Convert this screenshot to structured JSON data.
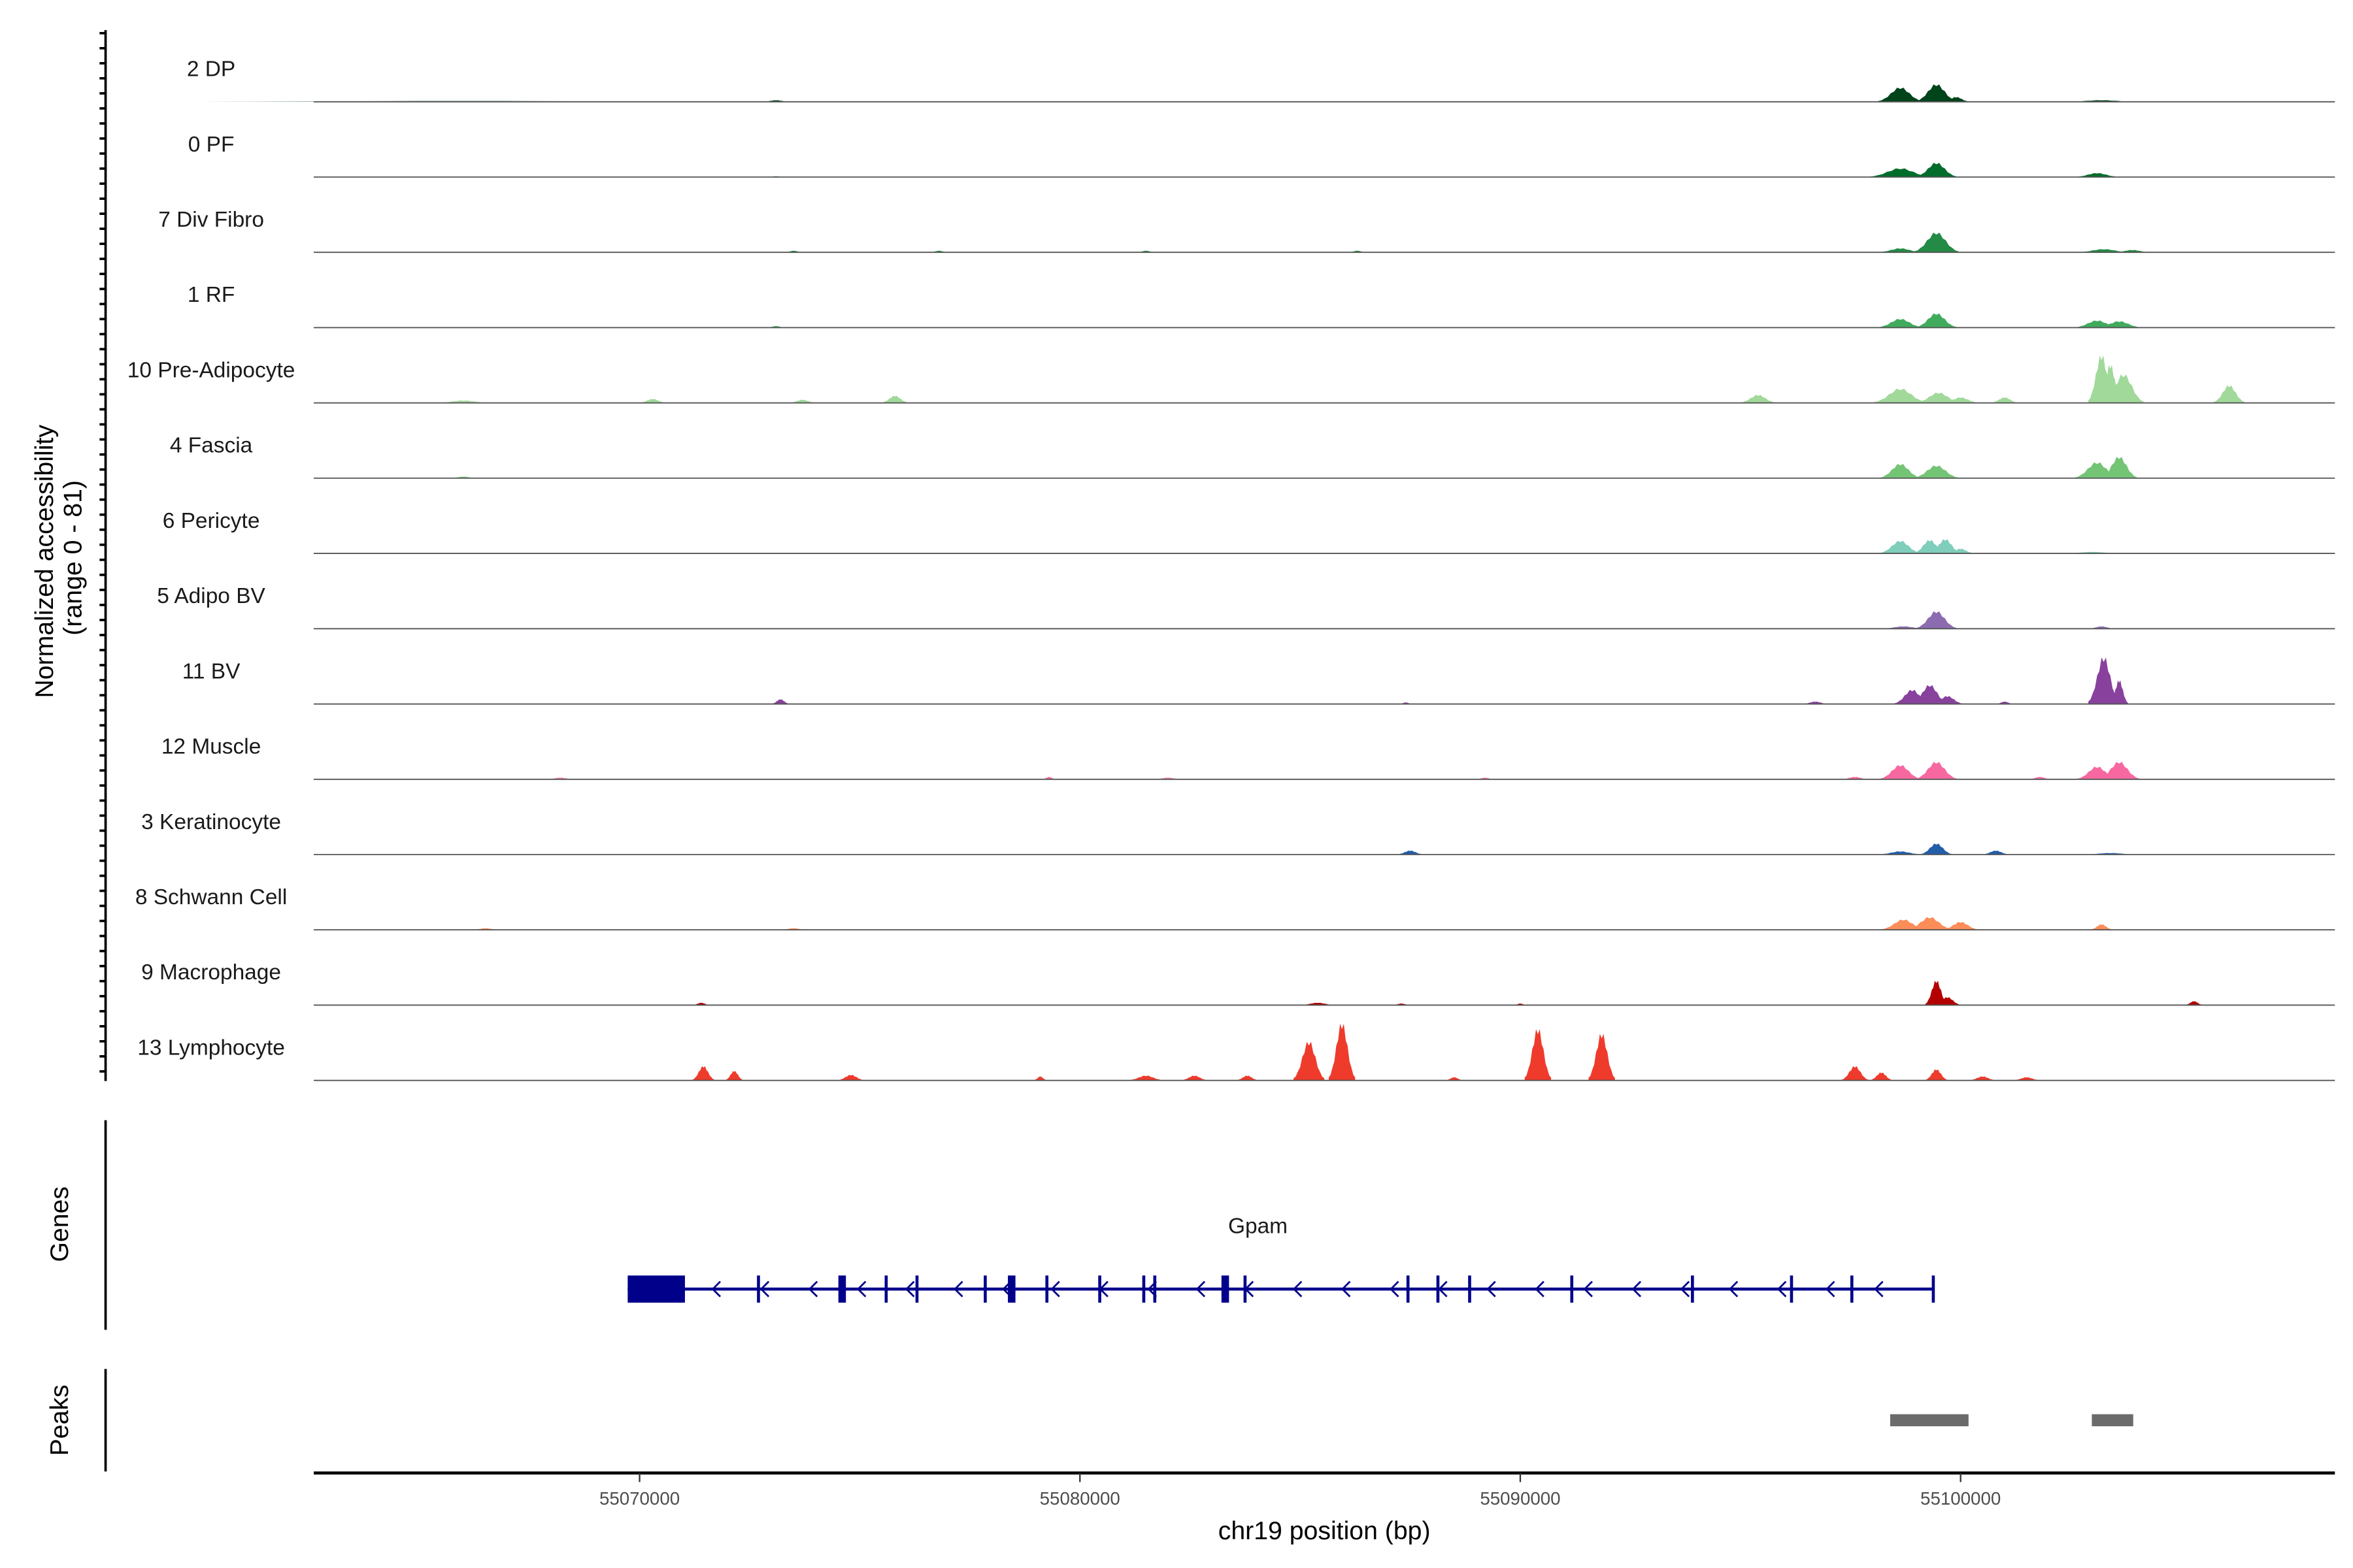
{
  "chart_data": {
    "type": "area",
    "title": "",
    "ylabel": "Normalized accessibility\n(range 0 - 81)",
    "ylabel_lines": [
      "Normalized accessibility",
      "(range 0 - 81)"
    ],
    "ylim": [
      0,
      81
    ],
    "xlabel": "chr19 position (bp)",
    "xlim": [
      55062600,
      55108500
    ],
    "xticks": [
      55070000,
      55080000,
      55090000,
      55100000
    ],
    "tick_labels": [
      "55070000",
      "55080000",
      "55090000",
      "55100000"
    ],
    "genes_label": "Genes",
    "peaks_label": "Peaks",
    "tracks": [
      {
        "name": "2 DP",
        "color": "#00441b",
        "peaks": [
          [
            55098630,
            18,
            500
          ],
          [
            55099450,
            22,
            450
          ],
          [
            55099900,
            6,
            300
          ],
          [
            55073100,
            2,
            300
          ],
          [
            55103200,
            2,
            800
          ],
          [
            55066000,
            1,
            6000
          ]
        ]
      },
      {
        "name": "0 PF",
        "color": "#006d2c",
        "peaks": [
          [
            55098630,
            11,
            700
          ],
          [
            55099450,
            18,
            450
          ],
          [
            55103100,
            5,
            500
          ],
          [
            55073100,
            1,
            200
          ]
        ]
      },
      {
        "name": "7 Div Fibro",
        "color": "#238b45",
        "peaks": [
          [
            55098630,
            5,
            500
          ],
          [
            55099450,
            25,
            500
          ],
          [
            55103250,
            4,
            600
          ],
          [
            55103900,
            3,
            400
          ],
          [
            55073500,
            2,
            200
          ],
          [
            55076800,
            2,
            200
          ],
          [
            55081500,
            2,
            200
          ],
          [
            55086300,
            2,
            200
          ]
        ]
      },
      {
        "name": "1 RF",
        "color": "#41ab5d",
        "peaks": [
          [
            55098630,
            11,
            500
          ],
          [
            55099450,
            18,
            450
          ],
          [
            55103100,
            9,
            500
          ],
          [
            55103600,
            8,
            500
          ],
          [
            55073100,
            2,
            200
          ]
        ]
      },
      {
        "name": "10 Pre-Adipocyte",
        "color": "#a1d99b",
        "peaks": [
          [
            55098630,
            18,
            600
          ],
          [
            55099500,
            13,
            500
          ],
          [
            55100000,
            7,
            400
          ],
          [
            55101000,
            7,
            300
          ],
          [
            55103200,
            60,
            300
          ],
          [
            55103400,
            48,
            250
          ],
          [
            55103700,
            36,
            450
          ],
          [
            55106100,
            22,
            350
          ],
          [
            55095400,
            10,
            400
          ],
          [
            55075800,
            9,
            300
          ],
          [
            55070300,
            5,
            300
          ],
          [
            55066000,
            3,
            600
          ],
          [
            55073700,
            4,
            300
          ]
        ]
      },
      {
        "name": "4 Fascia",
        "color": "#74c476",
        "peaks": [
          [
            55098630,
            18,
            450
          ],
          [
            55099450,
            16,
            500
          ],
          [
            55103100,
            20,
            500
          ],
          [
            55103600,
            27,
            400
          ],
          [
            55066000,
            2,
            300
          ]
        ]
      },
      {
        "name": "6 Pericyte",
        "color": "#7fcdbb",
        "peaks": [
          [
            55098630,
            16,
            450
          ],
          [
            55099300,
            17,
            350
          ],
          [
            55099650,
            18,
            350
          ],
          [
            55100000,
            6,
            300
          ],
          [
            55103000,
            2,
            600
          ]
        ]
      },
      {
        "name": "5 Adipo BV",
        "color": "#8c6bb1",
        "peaks": [
          [
            55099450,
            22,
            450
          ],
          [
            55098700,
            3,
            500
          ],
          [
            55103200,
            3,
            300
          ]
        ]
      },
      {
        "name": "11 BV",
        "color": "#88419d",
        "peaks": [
          [
            55073200,
            6,
            200
          ],
          [
            55098900,
            18,
            400
          ],
          [
            55099300,
            24,
            400
          ],
          [
            55099700,
            10,
            350
          ],
          [
            55103250,
            59,
            350
          ],
          [
            55103600,
            30,
            200
          ],
          [
            55096700,
            3,
            300
          ],
          [
            55101000,
            3,
            200
          ],
          [
            55087400,
            2,
            150
          ]
        ]
      },
      {
        "name": "12 Muscle",
        "color": "#f768a1",
        "peaks": [
          [
            55098630,
            18,
            450
          ],
          [
            55099450,
            22,
            450
          ],
          [
            55103100,
            16,
            450
          ],
          [
            55103600,
            22,
            450
          ],
          [
            55079300,
            3,
            150
          ],
          [
            55068200,
            2,
            300
          ],
          [
            55097600,
            3,
            300
          ],
          [
            55101800,
            3,
            250
          ],
          [
            55082000,
            2,
            300
          ],
          [
            55089200,
            2,
            200
          ]
        ]
      },
      {
        "name": "3 Keratinocyte",
        "color": "#225ea8",
        "peaks": [
          [
            55099450,
            14,
            350
          ],
          [
            55098630,
            4,
            500
          ],
          [
            55100800,
            5,
            300
          ],
          [
            55087500,
            5,
            300
          ],
          [
            55103400,
            2,
            600
          ]
        ]
      },
      {
        "name": "8 Schwann Cell",
        "color": "#fc8d59",
        "peaks": [
          [
            55098700,
            13,
            500
          ],
          [
            55099300,
            16,
            500
          ],
          [
            55100000,
            10,
            400
          ],
          [
            55103200,
            7,
            250
          ],
          [
            55066500,
            2,
            300
          ],
          [
            55073500,
            2,
            300
          ]
        ]
      },
      {
        "name": "9 Macrophage",
        "color": "#b30000",
        "peaks": [
          [
            55099450,
            31,
            250
          ],
          [
            55099700,
            10,
            300
          ],
          [
            55105300,
            5,
            200
          ],
          [
            55071400,
            3,
            200
          ],
          [
            55085400,
            3,
            400
          ],
          [
            55087300,
            2,
            200
          ],
          [
            55090000,
            2,
            150
          ]
        ]
      },
      {
        "name": "13 Lymphocyte",
        "color": "#ef3b2c",
        "peaks": [
          [
            55071450,
            18,
            250
          ],
          [
            55072150,
            12,
            200
          ],
          [
            55074800,
            7,
            300
          ],
          [
            55079100,
            5,
            150
          ],
          [
            55081500,
            6,
            400
          ],
          [
            55082600,
            6,
            300
          ],
          [
            55085200,
            49,
            350
          ],
          [
            55085950,
            72,
            300
          ],
          [
            55090400,
            65,
            300
          ],
          [
            55091850,
            59,
            300
          ],
          [
            55097600,
            18,
            300
          ],
          [
            55098200,
            10,
            250
          ],
          [
            55099450,
            14,
            250
          ],
          [
            55100500,
            5,
            300
          ],
          [
            55101500,
            4,
            300
          ],
          [
            55083800,
            6,
            250
          ],
          [
            55088500,
            4,
            200
          ]
        ]
      }
    ],
    "genes": [
      {
        "name": "Gpam",
        "strand": "-",
        "start": 55069730,
        "end": 55099380,
        "utr": [
          55069730,
          55071030
        ],
        "exons": [
          55072700,
          55074600,
          55075600,
          55076300,
          55077850,
          55078450,
          55079250,
          55080450,
          55081450,
          55081700,
          55083300,
          55083750,
          55087450,
          55088130,
          55088850,
          55091170,
          55093910,
          55096160,
          55097530,
          55099380
        ],
        "wide_exons": [
          55074600,
          55078450,
          55083300
        ]
      }
    ],
    "peak_regions": [
      [
        55098400,
        55100180
      ],
      [
        55102980,
        55103920
      ]
    ],
    "peak_color": "#6b6b6b",
    "gene_color": "#00008b"
  }
}
